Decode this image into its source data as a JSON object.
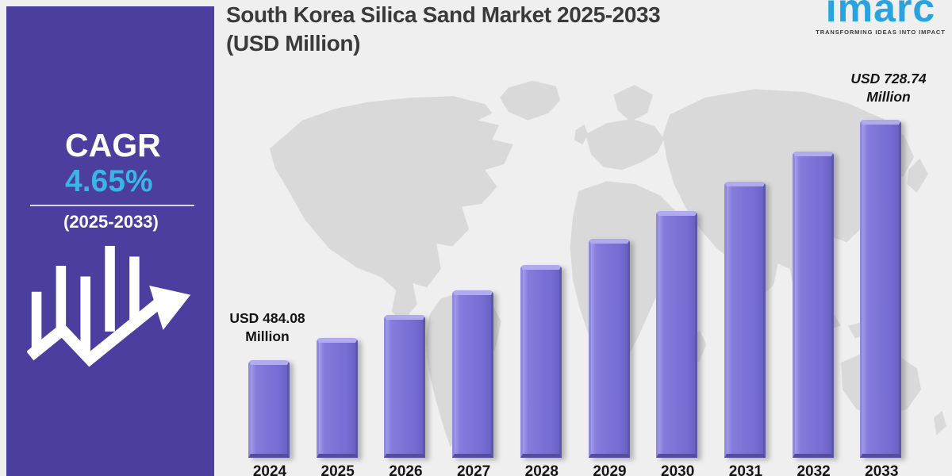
{
  "header": {
    "title_line1": "South Korea Silica Sand Market 2025-2033",
    "title_line2": "(USD Million)"
  },
  "logo": {
    "brand": "imarc",
    "tagline": "TRANSFORMING IDEAS INTO IMPACT",
    "brand_color": "#29a3e0"
  },
  "sidebar": {
    "cagr_label": "CAGR",
    "cagr_value": "4.65%",
    "period": "(2025-2033)",
    "background_color": "#4b3e9f",
    "value_color": "#3ab5ea",
    "icon": "growth-chart-with-arrow"
  },
  "chart_data": {
    "type": "bar",
    "title": "South Korea Silica Sand Market 2025-2033 (USD Million)",
    "unit": "USD Million",
    "categories": [
      "2024",
      "2025",
      "2026",
      "2027",
      "2028",
      "2029",
      "2030",
      "2031",
      "2032",
      "2033"
    ],
    "values": [
      484.08,
      506.59,
      530.15,
      554.8,
      580.6,
      607.6,
      635.85,
      665.42,
      696.36,
      728.74
    ],
    "labeled_points": [
      {
        "category": "2024",
        "line1": "USD 484.08",
        "line2": "Million",
        "full": "USD 484.08 Million"
      },
      {
        "category": "2033",
        "line1": "USD 728.74",
        "line2": "Million",
        "full": "USD 728.74 Million"
      }
    ],
    "cagr": "4.65%",
    "cagr_period": "2025-2033",
    "ylim": [
      385,
      730
    ],
    "bar_color": "#7b72d6",
    "background": "world-map-watermark",
    "grid": false,
    "legend": false,
    "xlabel": "",
    "ylabel": ""
  }
}
